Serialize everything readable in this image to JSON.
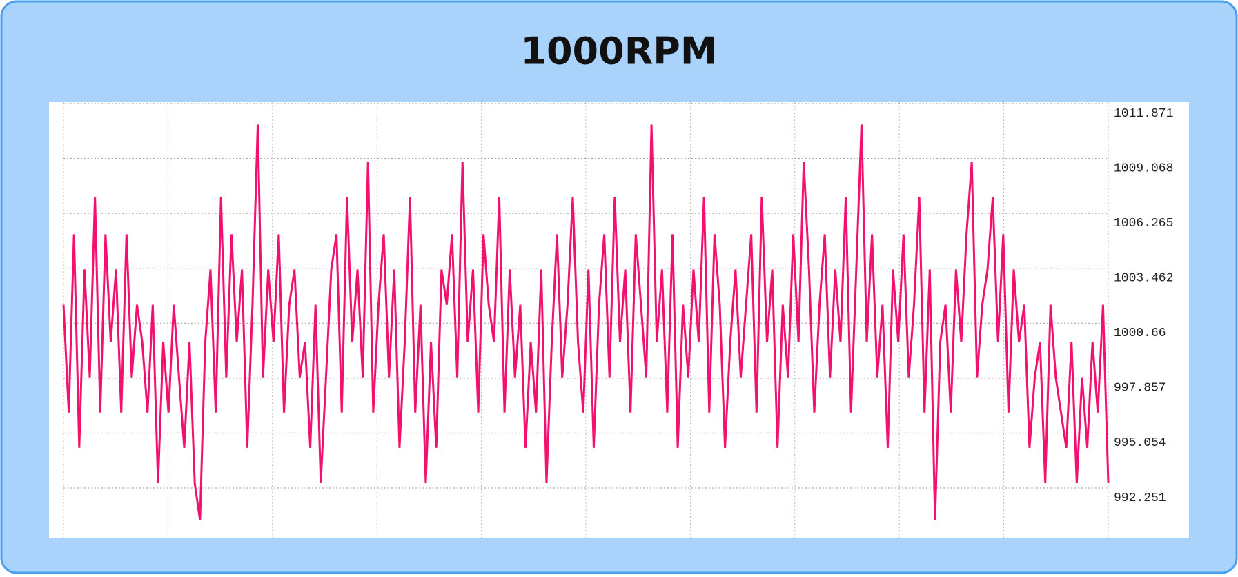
{
  "chart_data": {
    "type": "line",
    "title": "1000RPM",
    "series": [
      {
        "color": "#f2116f",
        "values": [
          1001.6,
          996.1,
          1005.2,
          994.3,
          1003.4,
          997.9,
          1007.1,
          996.1,
          1005.2,
          999.7,
          1003.4,
          996.1,
          1005.2,
          997.9,
          1001.6,
          999.7,
          996.1,
          1001.6,
          992.5,
          999.7,
          996.1,
          1001.6,
          997.9,
          994.3,
          999.7,
          992.5,
          990.6,
          999.7,
          1003.4,
          996.1,
          1007.1,
          997.9,
          1005.2,
          999.7,
          1003.4,
          994.3,
          1001.6,
          1010.8,
          997.9,
          1003.4,
          999.7,
          1005.2,
          996.1,
          1001.6,
          1003.4,
          997.9,
          999.7,
          994.3,
          1001.6,
          992.5,
          997.9,
          1003.4,
          1005.2,
          996.1,
          1007.1,
          999.7,
          1003.4,
          997.9,
          1008.9,
          996.1,
          1001.6,
          1005.2,
          997.9,
          1003.4,
          994.3,
          999.7,
          1007.1,
          996.1,
          1001.6,
          992.5,
          999.7,
          994.3,
          1003.4,
          1001.6,
          1005.2,
          997.9,
          1008.9,
          999.7,
          1003.4,
          996.1,
          1005.2,
          1001.6,
          999.7,
          1007.1,
          996.1,
          1003.4,
          997.9,
          1001.6,
          994.3,
          999.7,
          996.1,
          1003.4,
          992.5,
          999.7,
          1005.2,
          997.9,
          1001.6,
          1007.1,
          999.7,
          996.1,
          1003.4,
          994.3,
          1001.6,
          1005.2,
          997.9,
          1007.1,
          999.7,
          1003.4,
          996.1,
          1005.2,
          1001.6,
          997.9,
          1010.8,
          999.7,
          1003.4,
          996.1,
          1005.2,
          994.3,
          1001.6,
          997.9,
          1003.4,
          999.7,
          1007.1,
          996.1,
          1005.2,
          1001.6,
          994.3,
          999.7,
          1003.4,
          997.9,
          1001.6,
          1005.2,
          996.1,
          1007.1,
          999.7,
          1003.4,
          994.3,
          1001.6,
          997.9,
          1005.2,
          999.7,
          1008.9,
          1003.4,
          996.1,
          1001.6,
          1005.2,
          997.9,
          1003.4,
          999.7,
          1007.1,
          996.1,
          1003.4,
          1010.8,
          999.7,
          1005.2,
          997.9,
          1001.6,
          994.3,
          1003.4,
          999.7,
          1005.2,
          997.9,
          1001.6,
          1007.1,
          996.1,
          1003.4,
          990.6,
          999.7,
          1001.6,
          996.1,
          1003.4,
          999.7,
          1005.2,
          1008.9,
          997.9,
          1001.6,
          1003.4,
          1007.1,
          999.7,
          1005.2,
          996.1,
          1003.4,
          999.7,
          1001.6,
          994.3,
          997.9,
          999.7,
          992.5,
          1001.6,
          997.9,
          996.1,
          994.3,
          999.7,
          992.5,
          997.9,
          994.3,
          999.7,
          996.1,
          1001.6,
          992.5
        ]
      }
    ],
    "ylim": [
      989.68,
      1011.871
    ],
    "yticks": [
      1011.871,
      1009.068,
      1006.265,
      1003.462,
      1000.66,
      997.857,
      995.054,
      992.251
    ],
    "grid": true
  }
}
